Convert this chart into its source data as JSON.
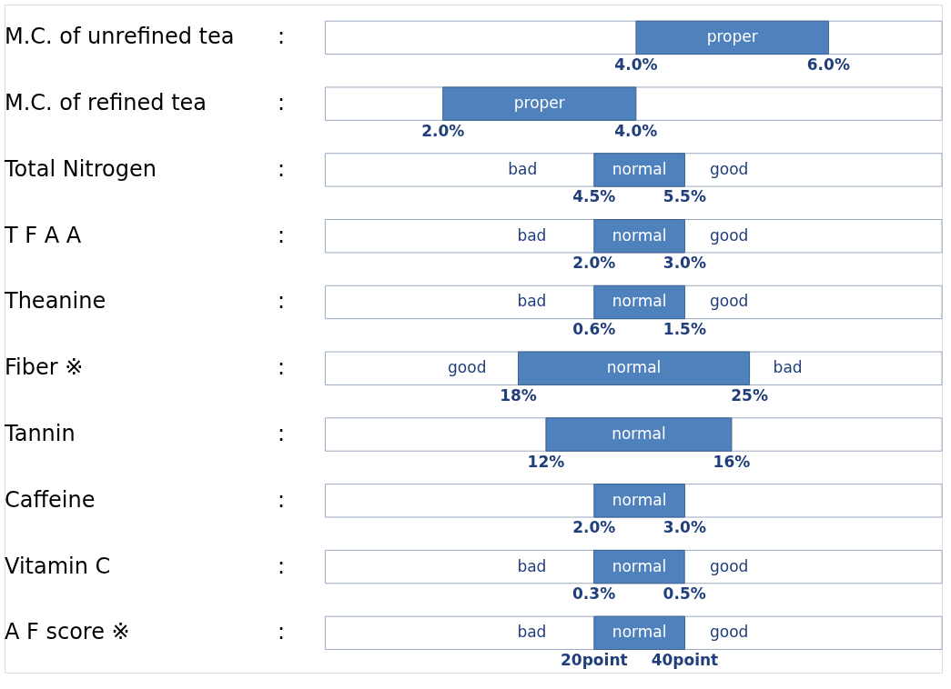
{
  "chart_data": {
    "type": "other",
    "color": "#4f81bd",
    "categories": [
      "M.C. of unrefined tea",
      "M.C. of refined tea",
      "Total Nitrogen",
      "T F A A",
      "Theanine",
      "Fiber ※",
      "Tannin",
      "Caffeine",
      "Vitamin C",
      "A F score ※"
    ],
    "series": [
      {
        "values": [
          4.0,
          2.0,
          4.5,
          2.0,
          0.6,
          18,
          12,
          2.0,
          0.3,
          20
        ],
        "value_labels": [
          "4.0%",
          "2.0%",
          "4.5%",
          "2.0%",
          "0.6%",
          "18%",
          "12%",
          "2.0%",
          "0.3%",
          "20point"
        ]
      },
      {
        "values": [
          6.0,
          4.0,
          5.5,
          3.0,
          1.5,
          25,
          16,
          3.0,
          0.5,
          40
        ],
        "value_labels": [
          "6.0%",
          "4.0%",
          "5.5%",
          "3.0%",
          "1.5%",
          "25%",
          "16%",
          "3.0%",
          "0.5%",
          "40point"
        ]
      }
    ],
    "annotations": [
      ":",
      "proper",
      ":",
      "proper",
      ":",
      "bad",
      "normal",
      "good",
      ":",
      "bad",
      "normal",
      "good",
      ":",
      "bad",
      "normal",
      "good",
      ":",
      "good",
      "normal",
      "bad",
      ":",
      "normal",
      ":",
      "normal",
      ":",
      "bad",
      "normal",
      "good",
      ":",
      "bad",
      "normal",
      "good"
    ]
  }
}
